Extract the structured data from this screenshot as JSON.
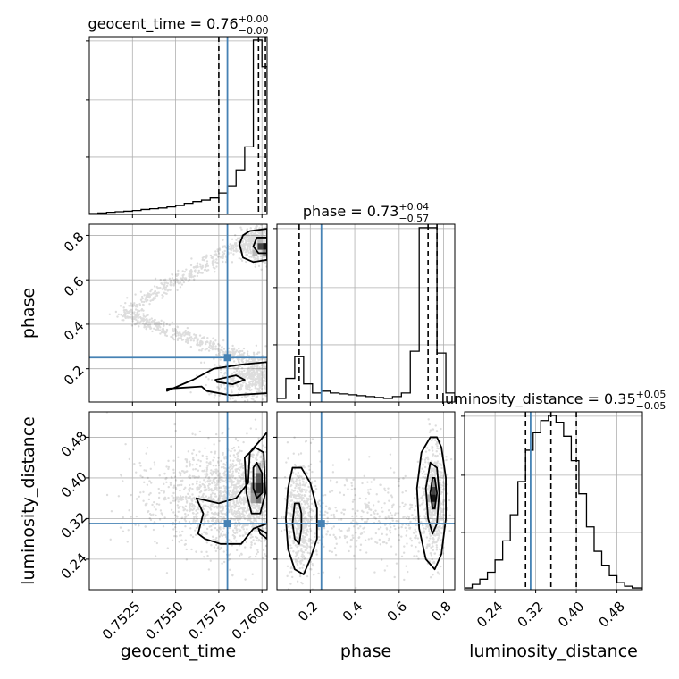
{
  "chart_data": {
    "type": "corner",
    "parameters": [
      "geocent_time",
      "phase",
      "luminosity_distance"
    ],
    "axis_labels": [
      "geocent_time",
      "phase",
      "luminosity_distance"
    ],
    "ranges": {
      "geocent_time": [
        0.75,
        0.7603
      ],
      "phase": [
        0.05,
        0.85
      ],
      "luminosity_distance": [
        0.18,
        0.53
      ]
    },
    "ticks": {
      "geocent_time": {
        "values": [
          0.7525,
          0.755,
          0.7575,
          0.76
        ],
        "labels": [
          "0.7525",
          "0.7550",
          "0.7575",
          "0.7600"
        ]
      },
      "phase": {
        "values": [
          0.2,
          0.4,
          0.6,
          0.8
        ],
        "labels": [
          "0.2",
          "0.4",
          "0.6",
          "0.8"
        ]
      },
      "luminosity_distance": {
        "values": [
          0.24,
          0.32,
          0.4,
          0.48
        ],
        "labels": [
          "0.24",
          "0.32",
          "0.40",
          "0.48"
        ]
      }
    },
    "titles": [
      {
        "param": "geocent_time",
        "text": "geocent_time = 0.76",
        "sup": "+0.00",
        "sub": "−0.00"
      },
      {
        "param": "phase",
        "text": "phase = 0.73",
        "sup": "+0.04",
        "sub": "−0.57"
      },
      {
        "param": "luminosity_distance",
        "text": "luminosity_distance = 0.35",
        "sup": "+0.05",
        "sub": "−0.05"
      }
    ],
    "truths": {
      "geocent_time": 0.758,
      "phase": 0.25,
      "luminosity_distance": 0.31
    },
    "quantiles": {
      "geocent_time": [
        0.7575,
        0.7598,
        0.7602
      ],
      "phase": [
        0.15,
        0.73,
        0.77
      ],
      "luminosity_distance": [
        0.3,
        0.35,
        0.4
      ]
    },
    "histograms": {
      "geocent_time": {
        "edges": [
          0.75,
          0.7505,
          0.751,
          0.7515,
          0.752,
          0.7525,
          0.753,
          0.7535,
          0.754,
          0.7545,
          0.755,
          0.7555,
          0.756,
          0.7565,
          0.757,
          0.7575,
          0.758,
          0.7585,
          0.759,
          0.7595,
          0.76,
          0.7603
        ],
        "counts": [
          0.005,
          0.008,
          0.012,
          0.015,
          0.018,
          0.022,
          0.028,
          0.032,
          0.036,
          0.042,
          0.05,
          0.062,
          0.072,
          0.08,
          0.092,
          0.12,
          0.16,
          0.25,
          0.38,
          0.98,
          0.83
        ]
      },
      "phase": {
        "edges": [
          0.05,
          0.09,
          0.13,
          0.17,
          0.21,
          0.25,
          0.29,
          0.33,
          0.37,
          0.41,
          0.45,
          0.49,
          0.53,
          0.57,
          0.61,
          0.65,
          0.69,
          0.73,
          0.77,
          0.81,
          0.85
        ],
        "counts": [
          0.02,
          0.13,
          0.25,
          0.1,
          0.05,
          0.06,
          0.05,
          0.045,
          0.04,
          0.035,
          0.03,
          0.025,
          0.02,
          0.03,
          0.05,
          0.28,
          0.96,
          0.96,
          0.27,
          0.05
        ]
      },
      "luminosity_distance": {
        "edges": [
          0.18,
          0.195,
          0.21,
          0.225,
          0.24,
          0.255,
          0.27,
          0.285,
          0.3,
          0.315,
          0.33,
          0.345,
          0.36,
          0.375,
          0.39,
          0.405,
          0.42,
          0.435,
          0.45,
          0.465,
          0.48,
          0.495,
          0.51,
          0.53
        ],
        "counts": [
          0.01,
          0.03,
          0.06,
          0.1,
          0.17,
          0.28,
          0.43,
          0.62,
          0.8,
          0.9,
          0.97,
          1.0,
          0.96,
          0.88,
          0.74,
          0.55,
          0.36,
          0.22,
          0.14,
          0.08,
          0.04,
          0.02,
          0.01
        ]
      }
    },
    "pairs": [
      {
        "x": "geocent_time",
        "y": "phase",
        "contours": [
          [
            [
              0.7593,
              0.82
            ],
            [
              0.7603,
              0.83
            ],
            [
              0.7603,
              0.69
            ],
            [
              0.7595,
              0.68
            ],
            [
              0.7589,
              0.7
            ],
            [
              0.7587,
              0.76
            ],
            [
              0.7589,
              0.8
            ]
          ],
          [
            [
              0.7597,
              0.79
            ],
            [
              0.7603,
              0.79
            ],
            [
              0.7603,
              0.72
            ],
            [
              0.7598,
              0.72
            ],
            [
              0.7595,
              0.75
            ]
          ],
          [
            [
              0.7565,
              0.12
            ],
            [
              0.7545,
              0.11
            ],
            [
              0.7545,
              0.1
            ],
            [
              0.756,
              0.15
            ],
            [
              0.7572,
              0.2
            ],
            [
              0.7589,
              0.22
            ],
            [
              0.7603,
              0.23
            ],
            [
              0.7603,
              0.09
            ],
            [
              0.7582,
              0.08
            ],
            [
              0.7568,
              0.1
            ]
          ],
          [
            [
              0.7573,
              0.15
            ],
            [
              0.7585,
              0.17
            ],
            [
              0.759,
              0.15
            ],
            [
              0.7583,
              0.13
            ],
            [
              0.7574,
              0.14
            ]
          ]
        ],
        "density": [
          {
            "x": 0.7602,
            "y": 0.75,
            "w": 0.0003,
            "h": 0.03,
            "shade": 1.0
          },
          {
            "x": 0.7599,
            "y": 0.75,
            "w": 0.0003,
            "h": 0.03,
            "shade": 0.8
          },
          {
            "x": 0.7602,
            "y": 0.72,
            "w": 0.0003,
            "h": 0.03,
            "shade": 0.5
          },
          {
            "x": 0.7596,
            "y": 0.72,
            "w": 0.0003,
            "h": 0.03,
            "shade": 0.3
          },
          {
            "x": 0.7599,
            "y": 0.78,
            "w": 0.0003,
            "h": 0.03,
            "shade": 0.3
          }
        ]
      },
      {
        "x": "geocent_time",
        "y": "luminosity_distance",
        "contours": [
          [
            [
              0.7562,
              0.36
            ],
            [
              0.7566,
              0.33
            ],
            [
              0.7563,
              0.29
            ],
            [
              0.7567,
              0.28
            ],
            [
              0.7576,
              0.27
            ],
            [
              0.7588,
              0.27
            ],
            [
              0.7595,
              0.3
            ],
            [
              0.7603,
              0.31
            ],
            [
              0.7603,
              0.49
            ],
            [
              0.7598,
              0.47
            ],
            [
              0.7593,
              0.45
            ],
            [
              0.7592,
              0.39
            ],
            [
              0.7585,
              0.36
            ],
            [
              0.7575,
              0.35
            ]
          ],
          [
            [
              0.759,
              0.44
            ],
            [
              0.7596,
              0.46
            ],
            [
              0.7601,
              0.45
            ],
            [
              0.7602,
              0.37
            ],
            [
              0.7599,
              0.33
            ],
            [
              0.7594,
              0.33
            ],
            [
              0.7591,
              0.37
            ]
          ],
          [
            [
              0.7595,
              0.42
            ],
            [
              0.7597,
              0.43
            ],
            [
              0.76,
              0.41
            ],
            [
              0.76,
              0.37
            ],
            [
              0.7597,
              0.36
            ],
            [
              0.7595,
              0.38
            ]
          ],
          [
            [
              0.7598,
              0.3
            ],
            [
              0.7603,
              0.29
            ],
            [
              0.7603,
              0.28
            ],
            [
              0.7599,
              0.29
            ]
          ]
        ],
        "density": [
          {
            "x": 0.7598,
            "y": 0.4,
            "w": 0.0003,
            "h": 0.02,
            "shade": 0.7
          },
          {
            "x": 0.7598,
            "y": 0.38,
            "w": 0.0003,
            "h": 0.02,
            "shade": 0.9
          },
          {
            "x": 0.7595,
            "y": 0.38,
            "w": 0.0003,
            "h": 0.02,
            "shade": 0.5
          },
          {
            "x": 0.7601,
            "y": 0.38,
            "w": 0.0002,
            "h": 0.02,
            "shade": 0.6
          },
          {
            "x": 0.7598,
            "y": 0.36,
            "w": 0.0003,
            "h": 0.02,
            "shade": 0.6
          },
          {
            "x": 0.7595,
            "y": 0.36,
            "w": 0.0003,
            "h": 0.02,
            "shade": 0.4
          },
          {
            "x": 0.7598,
            "y": 0.42,
            "w": 0.0003,
            "h": 0.02,
            "shade": 0.35
          }
        ]
      },
      {
        "x": "phase",
        "y": "luminosity_distance",
        "contours": [
          [
            [
              0.12,
              0.42
            ],
            [
              0.1,
              0.38
            ],
            [
              0.09,
              0.32
            ],
            [
              0.1,
              0.26
            ],
            [
              0.13,
              0.22
            ],
            [
              0.17,
              0.21
            ],
            [
              0.2,
              0.24
            ],
            [
              0.23,
              0.28
            ],
            [
              0.23,
              0.34
            ],
            [
              0.2,
              0.39
            ],
            [
              0.16,
              0.42
            ]
          ],
          [
            [
              0.13,
              0.35
            ],
            [
              0.12,
              0.31
            ],
            [
              0.13,
              0.28
            ],
            [
              0.15,
              0.27
            ],
            [
              0.16,
              0.3
            ],
            [
              0.16,
              0.33
            ],
            [
              0.15,
              0.35
            ]
          ],
          [
            [
              0.74,
              0.48
            ],
            [
              0.7,
              0.45
            ],
            [
              0.68,
              0.38
            ],
            [
              0.69,
              0.3
            ],
            [
              0.72,
              0.24
            ],
            [
              0.76,
              0.22
            ],
            [
              0.79,
              0.25
            ],
            [
              0.81,
              0.32
            ],
            [
              0.81,
              0.4
            ],
            [
              0.79,
              0.46
            ],
            [
              0.77,
              0.48
            ]
          ],
          [
            [
              0.74,
              0.43
            ],
            [
              0.72,
              0.38
            ],
            [
              0.73,
              0.32
            ],
            [
              0.75,
              0.29
            ],
            [
              0.77,
              0.31
            ],
            [
              0.78,
              0.37
            ],
            [
              0.77,
              0.42
            ]
          ],
          [
            [
              0.75,
              0.4
            ],
            [
              0.74,
              0.37
            ],
            [
              0.75,
              0.34
            ],
            [
              0.76,
              0.34
            ],
            [
              0.77,
              0.37
            ],
            [
              0.76,
              0.4
            ]
          ]
        ],
        "density": [
          {
            "x": 0.755,
            "y": 0.36,
            "w": 0.02,
            "h": 0.015,
            "shade": 1.0
          },
          {
            "x": 0.755,
            "y": 0.375,
            "w": 0.02,
            "h": 0.015,
            "shade": 0.8
          },
          {
            "x": 0.755,
            "y": 0.345,
            "w": 0.02,
            "h": 0.015,
            "shade": 0.6
          },
          {
            "x": 0.755,
            "y": 0.39,
            "w": 0.02,
            "h": 0.015,
            "shade": 0.45
          },
          {
            "x": 0.735,
            "y": 0.36,
            "w": 0.02,
            "h": 0.015,
            "shade": 0.35
          },
          {
            "x": 0.775,
            "y": 0.36,
            "w": 0.02,
            "h": 0.015,
            "shade": 0.3
          }
        ]
      }
    ],
    "scatter": [
      {
        "x": "geocent_time",
        "y": "phase",
        "n": 1800,
        "seed": 7,
        "mode": "tp"
      },
      {
        "x": "geocent_time",
        "y": "luminosity_distance",
        "n": 1600,
        "seed": 11,
        "mode": "td"
      },
      {
        "x": "phase",
        "y": "luminosity_distance",
        "n": 1500,
        "seed": 19,
        "mode": "pd"
      }
    ]
  }
}
